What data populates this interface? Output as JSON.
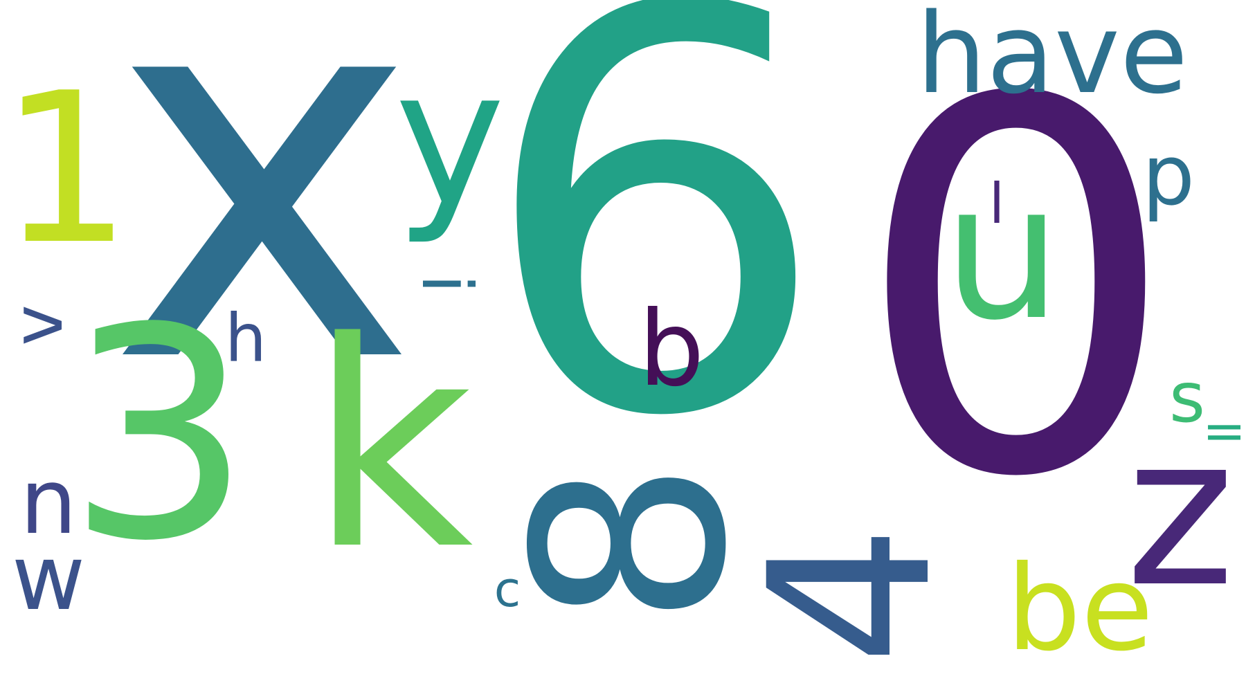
{
  "words": [
    {
      "id": "6",
      "text": "6",
      "color": "#22a187"
    },
    {
      "id": "0",
      "text": "0",
      "color": "#481a6c"
    },
    {
      "id": "x",
      "text": "x",
      "color": "#2e6e8e"
    },
    {
      "id": "3",
      "text": "3",
      "color": "#56c667"
    },
    {
      "id": "k",
      "text": "k",
      "color": "#6ccd5a"
    },
    {
      "id": "8",
      "text": "8",
      "color": "#2d6f8e"
    },
    {
      "id": "4",
      "text": "4",
      "color": "#365c8d"
    },
    {
      "id": "1",
      "text": "1",
      "color": "#c2df23"
    },
    {
      "id": "have",
      "text": "have",
      "color": "#2d708e"
    },
    {
      "id": "u",
      "text": "u",
      "color": "#44bf70"
    },
    {
      "id": "z",
      "text": "z",
      "color": "#482878"
    },
    {
      "id": "y",
      "text": "y",
      "color": "#20a486"
    },
    {
      "id": "be",
      "text": "be",
      "color": "#c8e020"
    },
    {
      "id": "b",
      "text": "b",
      "color": "#440f57"
    },
    {
      "id": "n",
      "text": "n",
      "color": "#3f4788"
    },
    {
      "id": "w",
      "text": "w",
      "color": "#3b528b"
    },
    {
      "id": "p",
      "text": "p",
      "color": "#2d708e"
    },
    {
      "id": "i",
      "text": "i",
      "color": "#2d708e"
    },
    {
      "id": "v",
      "text": "v",
      "color": "#3b528b"
    },
    {
      "id": "s",
      "text": "s",
      "color": "#3dbc74"
    },
    {
      "id": "h",
      "text": "h",
      "color": "#3b528b"
    },
    {
      "id": "l",
      "text": "l",
      "color": "#482878"
    },
    {
      "id": "c",
      "text": "c",
      "color": "#2c728e"
    },
    {
      "id": "eq",
      "text": "=",
      "color": "#27ad81"
    }
  ]
}
